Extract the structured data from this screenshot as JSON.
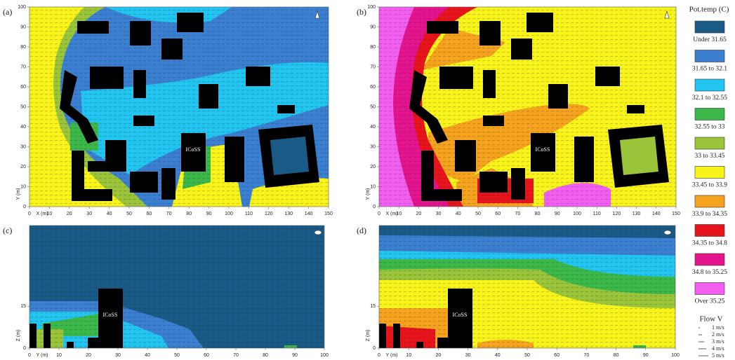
{
  "panels": [
    {
      "label": "(a)",
      "building_label": "ICoSS",
      "x_axis_label": "X (m)",
      "y_axis_label": "Y (m)",
      "xlim": [
        0,
        150
      ],
      "ylim": [
        0,
        100
      ],
      "xticks": [
        0,
        10,
        20,
        30,
        40,
        50,
        60,
        70,
        80,
        90,
        100,
        110,
        120,
        130,
        140,
        150
      ],
      "yticks": [
        0,
        10,
        20,
        30,
        40,
        50,
        60,
        70,
        80,
        90,
        100
      ]
    },
    {
      "label": "(b)",
      "building_label": "ICoSS",
      "x_axis_label": "X (m)",
      "y_axis_label": "Y (m)",
      "xlim": [
        0,
        150
      ],
      "ylim": [
        0,
        100
      ],
      "xticks": [
        0,
        10,
        20,
        30,
        40,
        50,
        60,
        70,
        80,
        90,
        100,
        110,
        120,
        130,
        140,
        150
      ],
      "yticks": [
        0,
        10,
        20,
        30,
        40,
        50,
        60,
        70,
        80,
        90,
        100
      ]
    },
    {
      "label": "(c)",
      "building_label": "ICoSS",
      "x_axis_label": "Y (m)",
      "y_axis_label": "Z (m)",
      "xlim": [
        0,
        100
      ],
      "ylim": [
        0,
        44
      ],
      "xticks": [
        0,
        10,
        20,
        30,
        40,
        50,
        60,
        70,
        80,
        90,
        100
      ],
      "yticks": [
        0,
        15
      ]
    },
    {
      "label": "(d)",
      "building_label": "ICoSS",
      "x_axis_label": "Y (m)",
      "y_axis_label": "Z (m)",
      "xlim": [
        0,
        100
      ],
      "ylim": [
        0,
        44
      ],
      "xticks": [
        0,
        10,
        20,
        30,
        40,
        50,
        60,
        70,
        80,
        90,
        100
      ],
      "yticks": [
        0,
        15
      ]
    }
  ],
  "legend": {
    "title": "Pot.temp (C)",
    "items": [
      {
        "label": "Under 31.65",
        "color": "#1a5a87"
      },
      {
        "label": "31.65 to 32.1",
        "color": "#3b80d0"
      },
      {
        "label": "32.1 to 32.55",
        "color": "#22c4f0"
      },
      {
        "label": "32.55 to 33",
        "color": "#3cb84a"
      },
      {
        "label": "33 to 33.45",
        "color": "#9ac43a"
      },
      {
        "label": "33.45 to 33.9",
        "color": "#f8f31a"
      },
      {
        "label": "33.9 to 34.35",
        "color": "#f5a21f"
      },
      {
        "label": "34.35 to 34.8",
        "color": "#e8141b"
      },
      {
        "label": "34.8 to 35.25",
        "color": "#e4148e"
      },
      {
        "label": "Over 35.25",
        "color": "#f25ff0"
      }
    ]
  },
  "flow_legend": {
    "title": "Flow V",
    "items": [
      "1 m/s",
      "2 m/s",
      "3 m/s",
      "4 m/s",
      "5 m/s"
    ]
  }
}
